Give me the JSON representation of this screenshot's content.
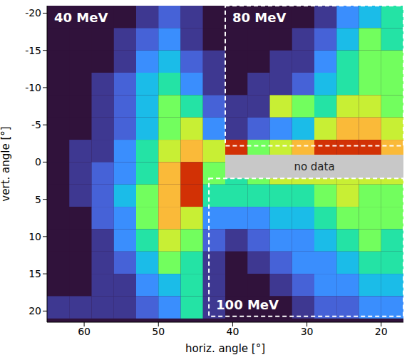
{
  "chart_data": {
    "type": "heatmap",
    "x_label": "horiz. angle [°]",
    "y_label": "vert. angle [°]",
    "xlim": [
      65,
      17
    ],
    "ylim": [
      21.5,
      -21
    ],
    "xticks": [
      60,
      50,
      40,
      30,
      20
    ],
    "yticks": [
      -20,
      -15,
      -10,
      -5,
      0,
      5,
      10,
      15,
      20
    ],
    "grid": false,
    "cells": {
      "x_edges": [
        65,
        62,
        59,
        56,
        53,
        50,
        47,
        44,
        41,
        38,
        35,
        32,
        29,
        26,
        23,
        20,
        17
      ],
      "y_edges": [
        -21,
        -18,
        -15,
        -12,
        -9,
        -6,
        -3,
        0,
        3,
        6,
        9,
        12,
        15,
        18,
        21
      ],
      "values": [
        [
          0,
          0,
          0,
          0,
          1,
          2,
          1,
          0,
          0,
          0,
          0,
          0,
          1,
          3,
          4,
          5
        ],
        [
          0,
          0,
          0,
          1,
          2,
          3,
          1,
          0,
          0,
          0,
          0,
          1,
          2,
          4,
          6,
          5
        ],
        [
          0,
          0,
          0,
          1,
          3,
          4,
          2,
          1,
          0,
          0,
          1,
          1,
          3,
          5,
          6,
          6
        ],
        [
          0,
          0,
          1,
          2,
          4,
          5,
          3,
          1,
          0,
          1,
          1,
          2,
          4,
          5,
          6,
          6
        ],
        [
          0,
          0,
          1,
          2,
          4,
          6,
          5,
          2,
          1,
          1,
          7,
          6,
          5,
          7,
          7,
          6
        ],
        [
          0,
          0,
          1,
          2,
          4,
          6,
          7,
          3,
          1,
          2,
          3,
          4,
          7,
          8,
          8,
          7
        ],
        [
          0,
          1,
          1,
          3,
          5,
          7,
          8,
          7,
          9,
          6,
          7,
          8,
          9,
          9,
          9,
          8
        ],
        [
          0,
          1,
          2,
          3,
          5,
          8,
          9,
          6,
          5,
          6,
          7,
          7,
          7,
          7,
          7,
          7
        ],
        [
          0,
          1,
          2,
          4,
          6,
          8,
          9,
          5,
          5,
          5,
          5,
          5,
          6,
          7,
          6,
          6
        ],
        [
          0,
          0,
          2,
          3,
          6,
          8,
          7,
          3,
          3,
          3,
          4,
          4,
          5,
          6,
          6,
          6
        ],
        [
          0,
          0,
          1,
          3,
          5,
          7,
          6,
          2,
          1,
          2,
          3,
          3,
          4,
          5,
          6,
          5
        ],
        [
          0,
          0,
          1,
          2,
          4,
          6,
          5,
          1,
          0,
          1,
          2,
          3,
          3,
          4,
          5,
          5
        ],
        [
          0,
          0,
          1,
          1,
          3,
          4,
          5,
          1,
          0,
          0,
          1,
          2,
          3,
          3,
          4,
          4
        ],
        [
          1,
          1,
          1,
          1,
          2,
          3,
          5,
          1,
          0,
          0,
          0,
          1,
          2,
          2,
          3,
          3
        ]
      ],
      "zlim": [
        0,
        9
      ]
    },
    "panels": [
      {
        "label": "40 MeV",
        "xlim": [
          65,
          41
        ],
        "ylim": [
          -21,
          21.5
        ]
      },
      {
        "label": "80 MeV",
        "xlim": [
          41,
          17
        ],
        "ylim": [
          -21,
          -2.2
        ],
        "line_style": "dashed"
      },
      {
        "label": "100 MeV",
        "xlim": [
          43.2,
          17
        ],
        "ylim": [
          2.2,
          20.7
        ],
        "line_style": "dashed"
      }
    ],
    "no_data": {
      "label": "no data",
      "xlim": [
        41,
        17
      ],
      "ylim": [
        -1,
        2.2
      ]
    }
  }
}
